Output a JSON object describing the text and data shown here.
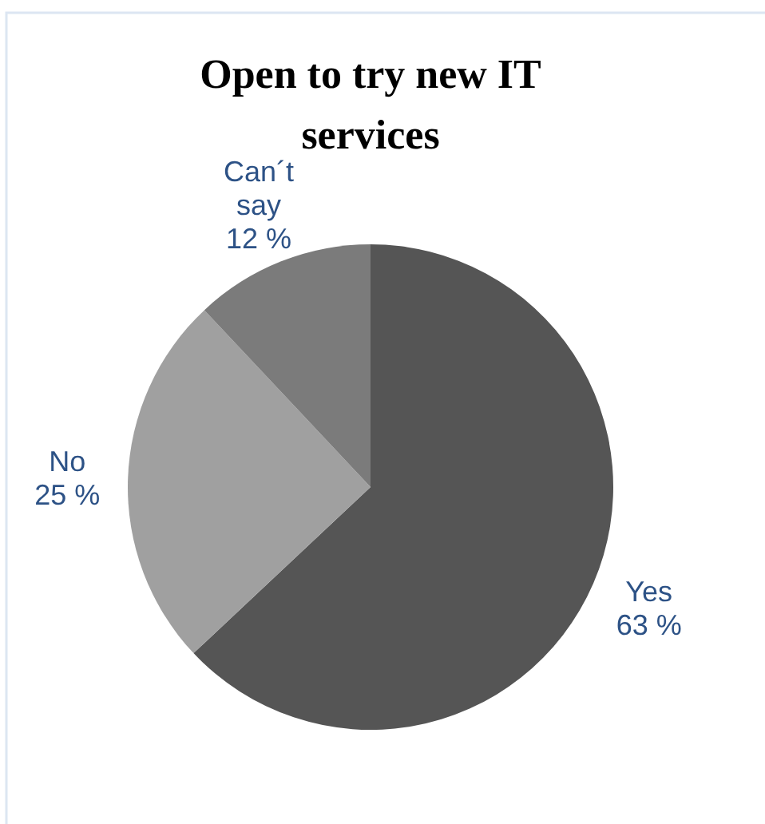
{
  "chart_data": {
    "type": "pie",
    "title": "Open to try new IT services",
    "categories": [
      "Yes",
      "No",
      "Can´t say"
    ],
    "values": [
      63,
      25,
      12
    ],
    "value_labels": [
      "63 %",
      "25 %",
      "12 %"
    ],
    "colors": [
      "#555555",
      "#a0a0a0",
      "#7b7b7b"
    ]
  }
}
